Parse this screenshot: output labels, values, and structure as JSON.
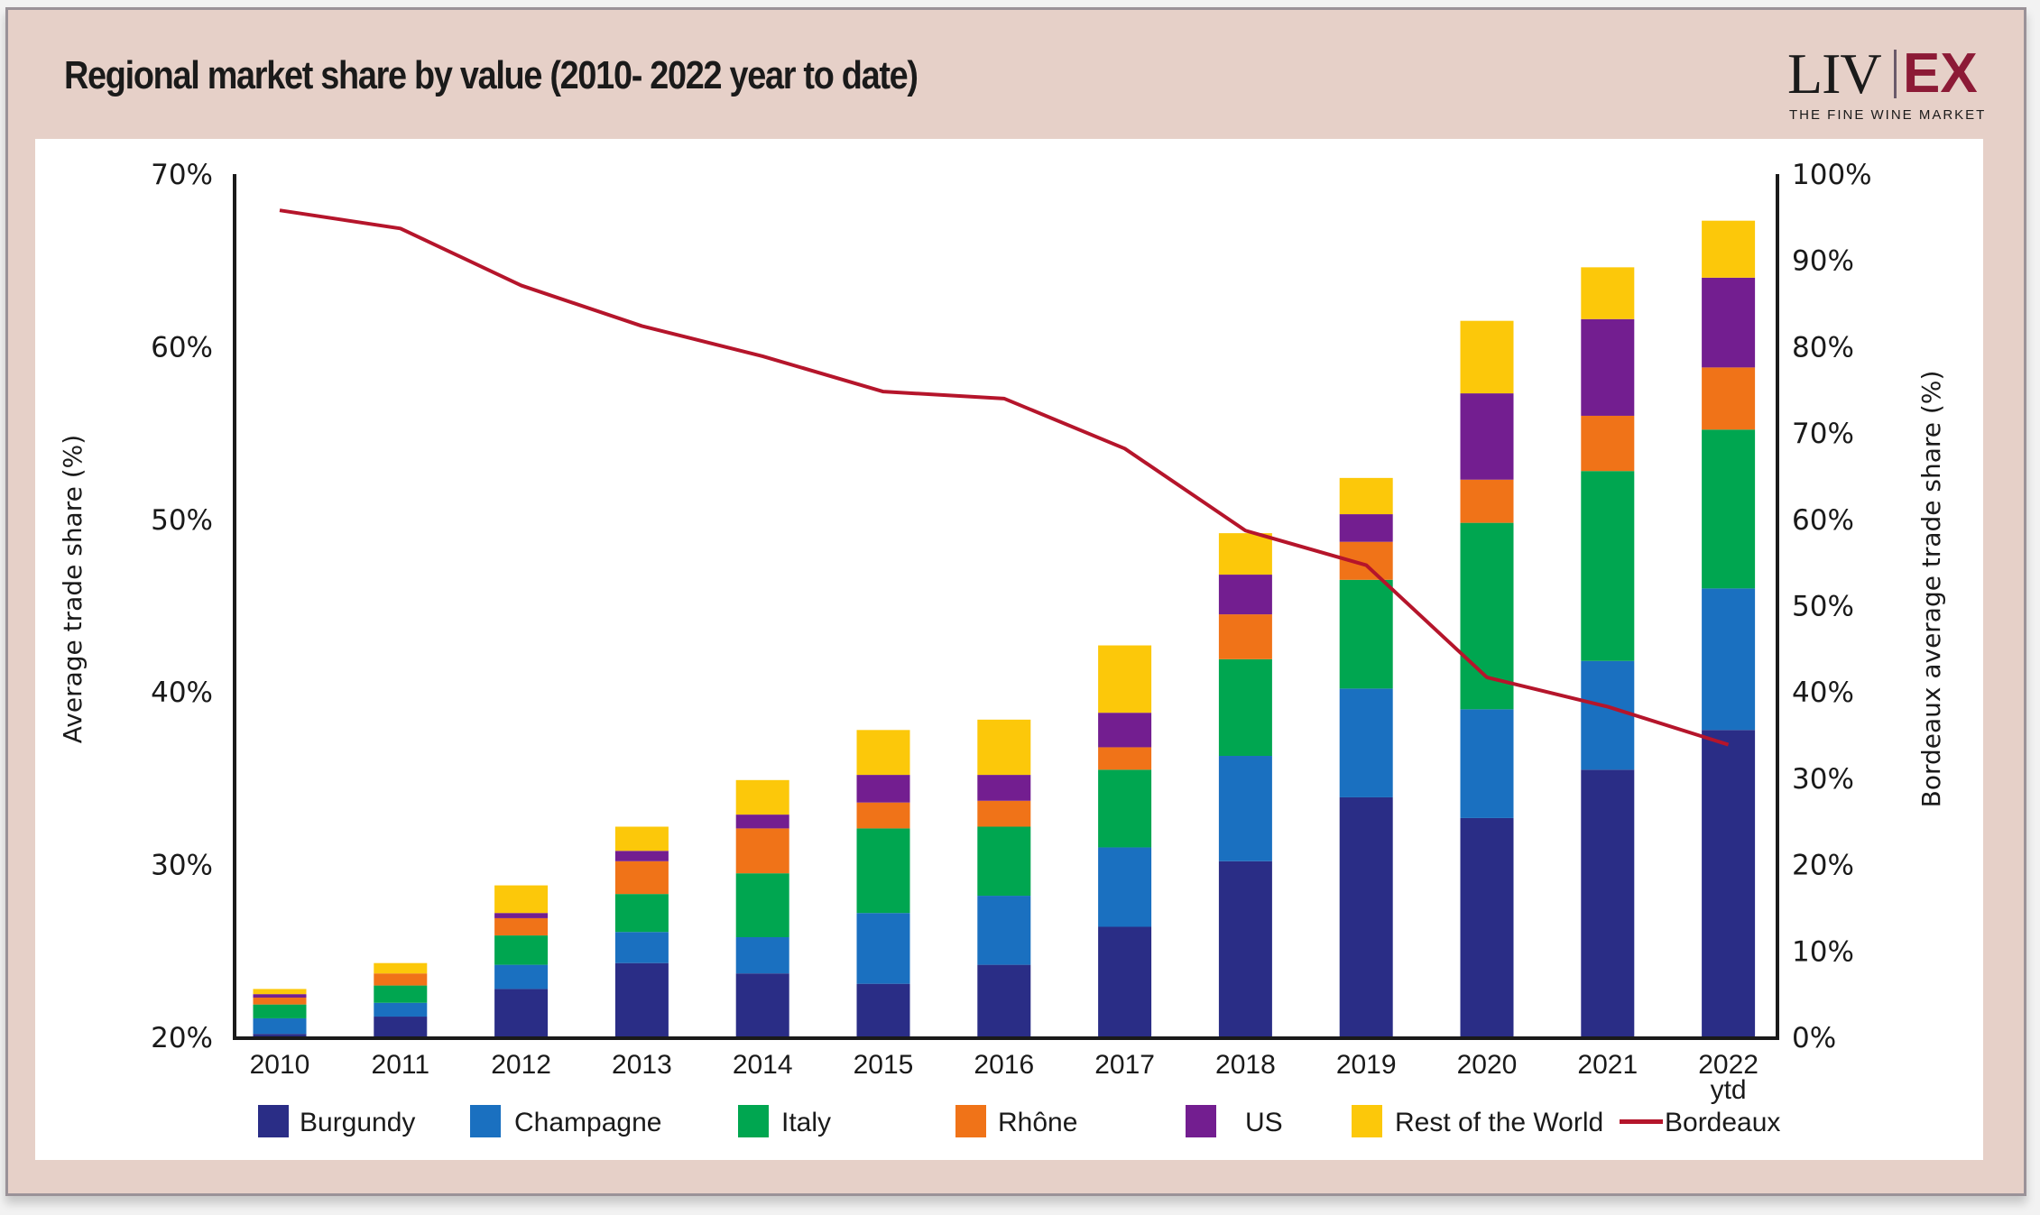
{
  "header": {
    "title": "Regional market share by value (2010- 2022 year to date)",
    "logo": {
      "left": "LIV",
      "right": "EX",
      "tagline": "THE FINE WINE MARKET"
    }
  },
  "colors": {
    "background": "#e6d0c8",
    "Burgundy": "#2a2d86",
    "Champagne": "#1a70c0",
    "Italy": "#00a650",
    "Rhône": "#f07318",
    "US": "#731e90",
    "Rest of the World": "#fcc80a",
    "Bordeaux": "#b5152b",
    "logo_accent": "#8c1a36"
  },
  "chart_data": {
    "type": "bar",
    "stacked": true,
    "title": "Regional market share by value (2010- 2022 year to date)",
    "categories": [
      "2010",
      "2011",
      "2012",
      "2013",
      "2014",
      "2015",
      "2016",
      "2017",
      "2018",
      "2019",
      "2020",
      "2021",
      "2022"
    ],
    "category_sublabels": [
      "",
      "",
      "",
      "",
      "",
      "",
      "",
      "",
      "",
      "",
      "",
      "",
      "ytd"
    ],
    "ylabel": "Average trade share (%)",
    "ylim": [
      20,
      70
    ],
    "yticks": [
      "20%",
      "30%",
      "40%",
      "50%",
      "60%",
      "70%"
    ],
    "y2label": "Bordeaux average trade share (%)",
    "y2lim": [
      0,
      100
    ],
    "y2ticks": [
      "0%",
      "10%",
      "20%",
      "30%",
      "40%",
      "50%",
      "60%",
      "70%",
      "80%",
      "90%",
      "100%"
    ],
    "note": "Stacked values are cumulative tops on the left axis (segment = top minus previous top, baseline 20%).",
    "series": [
      {
        "name": "Burgundy",
        "values": [
          20.2,
          21.2,
          22.8,
          24.3,
          23.7,
          23.1,
          24.2,
          26.4,
          30.2,
          33.9,
          32.7,
          35.5,
          37.8
        ]
      },
      {
        "name": "Champagne",
        "values": [
          21.1,
          22.0,
          24.2,
          26.1,
          25.8,
          27.2,
          28.2,
          31.0,
          36.3,
          40.2,
          39.0,
          41.8,
          46.0
        ]
      },
      {
        "name": "Italy",
        "values": [
          21.9,
          23.0,
          25.9,
          28.3,
          29.5,
          32.1,
          32.2,
          35.5,
          41.9,
          46.5,
          49.8,
          52.8,
          55.2
        ]
      },
      {
        "name": "Rhône",
        "values": [
          22.3,
          23.7,
          26.9,
          30.2,
          32.1,
          33.6,
          33.7,
          36.8,
          44.5,
          48.7,
          52.3,
          56.0,
          58.8
        ]
      },
      {
        "name": "US",
        "values": [
          22.5,
          23.7,
          27.2,
          30.8,
          32.9,
          35.2,
          35.2,
          38.8,
          46.8,
          50.3,
          57.3,
          61.6,
          64.0
        ]
      },
      {
        "name": "Rest of the World",
        "values": [
          22.8,
          24.3,
          28.8,
          32.2,
          34.9,
          37.8,
          38.4,
          42.7,
          49.2,
          52.4,
          61.5,
          64.6,
          67.3
        ]
      }
    ],
    "line_series": {
      "name": "Bordeaux",
      "axis": "right",
      "values": [
        95.8,
        93.7,
        87.1,
        82.4,
        78.9,
        74.8,
        74.0,
        68.2,
        58.7,
        54.7,
        41.7,
        38.3,
        33.9
      ]
    },
    "legend": [
      "Burgundy",
      "Champagne",
      "Italy",
      "Rhône",
      "US",
      "Rest of the World",
      "Bordeaux"
    ],
    "legend_position": "bottom",
    "grid": false
  }
}
